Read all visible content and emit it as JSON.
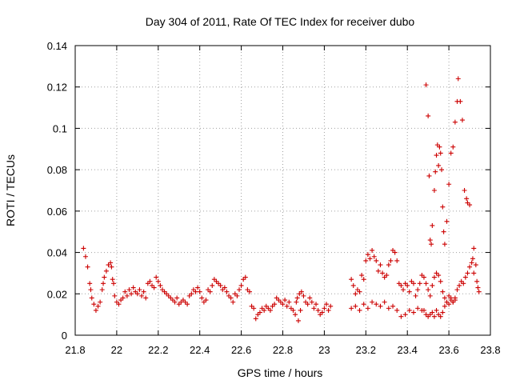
{
  "chart_data": {
    "type": "scatter",
    "title": "Day 304 of 2011, Rate Of TEC Index for receiver dubo",
    "xlabel": "GPS time / hours",
    "ylabel": "ROTI / TECUs",
    "xlim": [
      21.8,
      23.8
    ],
    "ylim": [
      0,
      0.14
    ],
    "x_ticks": [
      "21.8",
      "22",
      "22.2",
      "22.4",
      "22.6",
      "22.8",
      "23",
      "23.2",
      "23.4",
      "23.6",
      "23.8"
    ],
    "y_ticks": [
      "0",
      "0.02",
      "0.04",
      "0.06",
      "0.08",
      "0.1",
      "0.12",
      "0.14"
    ],
    "grid": true,
    "marker": "+",
    "color": "#cc0000",
    "series": [
      {
        "points": [
          [
            21.84,
            0.042
          ],
          [
            21.85,
            0.038
          ],
          [
            21.86,
            0.033
          ],
          [
            21.87,
            0.025
          ],
          [
            21.875,
            0.022
          ],
          [
            21.88,
            0.018
          ],
          [
            21.89,
            0.015
          ],
          [
            21.9,
            0.012
          ],
          [
            21.91,
            0.014
          ],
          [
            21.92,
            0.016
          ],
          [
            21.93,
            0.022
          ],
          [
            21.935,
            0.025
          ],
          [
            21.94,
            0.028
          ],
          [
            21.95,
            0.031
          ],
          [
            21.96,
            0.034
          ],
          [
            21.97,
            0.035
          ],
          [
            21.975,
            0.033
          ],
          [
            21.98,
            0.027
          ],
          [
            21.985,
            0.025
          ],
          [
            21.99,
            0.019
          ],
          [
            22.0,
            0.016
          ],
          [
            22.01,
            0.015
          ],
          [
            22.02,
            0.017
          ],
          [
            22.03,
            0.018
          ],
          [
            22.04,
            0.021
          ],
          [
            22.05,
            0.019
          ],
          [
            22.06,
            0.022
          ],
          [
            22.07,
            0.02
          ],
          [
            22.08,
            0.023
          ],
          [
            22.09,
            0.021
          ],
          [
            22.1,
            0.02
          ],
          [
            22.11,
            0.022
          ],
          [
            22.12,
            0.019
          ],
          [
            22.13,
            0.021
          ],
          [
            22.14,
            0.018
          ],
          [
            22.15,
            0.025
          ],
          [
            22.16,
            0.026
          ],
          [
            22.17,
            0.024
          ],
          [
            22.18,
            0.023
          ],
          [
            22.19,
            0.028
          ],
          [
            22.2,
            0.026
          ],
          [
            22.21,
            0.024
          ],
          [
            22.22,
            0.022
          ],
          [
            22.23,
            0.021
          ],
          [
            22.24,
            0.02
          ],
          [
            22.25,
            0.019
          ],
          [
            22.26,
            0.018
          ],
          [
            22.27,
            0.017
          ],
          [
            22.28,
            0.016
          ],
          [
            22.29,
            0.018
          ],
          [
            22.3,
            0.015
          ],
          [
            22.31,
            0.016
          ],
          [
            22.32,
            0.017
          ],
          [
            22.33,
            0.016
          ],
          [
            22.34,
            0.015
          ],
          [
            22.35,
            0.019
          ],
          [
            22.36,
            0.02
          ],
          [
            22.37,
            0.022
          ],
          [
            22.38,
            0.021
          ],
          [
            22.39,
            0.023
          ],
          [
            22.4,
            0.021
          ],
          [
            22.41,
            0.018
          ],
          [
            22.42,
            0.016
          ],
          [
            22.43,
            0.017
          ],
          [
            22.44,
            0.022
          ],
          [
            22.45,
            0.021
          ],
          [
            22.46,
            0.024
          ],
          [
            22.47,
            0.027
          ],
          [
            22.48,
            0.026
          ],
          [
            22.49,
            0.025
          ],
          [
            22.5,
            0.024
          ],
          [
            22.51,
            0.022
          ],
          [
            22.52,
            0.023
          ],
          [
            22.53,
            0.021
          ],
          [
            22.54,
            0.019
          ],
          [
            22.55,
            0.018
          ],
          [
            22.56,
            0.016
          ],
          [
            22.57,
            0.02
          ],
          [
            22.58,
            0.019
          ],
          [
            22.59,
            0.022
          ],
          [
            22.6,
            0.024
          ],
          [
            22.61,
            0.027
          ],
          [
            22.62,
            0.028
          ],
          [
            22.63,
            0.022
          ],
          [
            22.64,
            0.021
          ],
          [
            22.65,
            0.014
          ],
          [
            22.66,
            0.013
          ],
          [
            22.67,
            0.008
          ],
          [
            22.68,
            0.01
          ],
          [
            22.69,
            0.011
          ],
          [
            22.7,
            0.013
          ],
          [
            22.71,
            0.012
          ],
          [
            22.72,
            0.014
          ],
          [
            22.73,
            0.013
          ],
          [
            22.74,
            0.012
          ],
          [
            22.75,
            0.014
          ],
          [
            22.76,
            0.015
          ],
          [
            22.77,
            0.018
          ],
          [
            22.78,
            0.017
          ],
          [
            22.79,
            0.016
          ],
          [
            22.8,
            0.015
          ],
          [
            22.81,
            0.017
          ],
          [
            22.82,
            0.014
          ],
          [
            22.83,
            0.016
          ],
          [
            22.84,
            0.013
          ],
          [
            22.85,
            0.012
          ],
          [
            22.86,
            0.01
          ],
          [
            22.865,
            0.016
          ],
          [
            22.87,
            0.018
          ],
          [
            22.875,
            0.007
          ],
          [
            22.88,
            0.02
          ],
          [
            22.885,
            0.012
          ],
          [
            22.89,
            0.021
          ],
          [
            22.9,
            0.019
          ],
          [
            22.91,
            0.016
          ],
          [
            22.92,
            0.015
          ],
          [
            22.93,
            0.018
          ],
          [
            22.94,
            0.016
          ],
          [
            22.95,
            0.013
          ],
          [
            22.96,
            0.015
          ],
          [
            22.97,
            0.012
          ],
          [
            22.98,
            0.01
          ],
          [
            22.99,
            0.011
          ],
          [
            23.0,
            0.013
          ],
          [
            23.01,
            0.015
          ],
          [
            23.02,
            0.012
          ],
          [
            23.03,
            0.014
          ],
          [
            23.13,
            0.027
          ],
          [
            23.14,
            0.024
          ],
          [
            23.15,
            0.02
          ],
          [
            23.16,
            0.022
          ],
          [
            23.17,
            0.021
          ],
          [
            23.18,
            0.029
          ],
          [
            23.19,
            0.027
          ],
          [
            23.2,
            0.036
          ],
          [
            23.21,
            0.039
          ],
          [
            23.22,
            0.037
          ],
          [
            23.23,
            0.041
          ],
          [
            23.24,
            0.038
          ],
          [
            23.25,
            0.036
          ],
          [
            23.26,
            0.031
          ],
          [
            23.27,
            0.034
          ],
          [
            23.28,
            0.03
          ],
          [
            23.29,
            0.028
          ],
          [
            23.3,
            0.029
          ],
          [
            23.31,
            0.034
          ],
          [
            23.32,
            0.036
          ],
          [
            23.33,
            0.041
          ],
          [
            23.34,
            0.04
          ],
          [
            23.35,
            0.036
          ],
          [
            23.36,
            0.025
          ],
          [
            23.37,
            0.024
          ],
          [
            23.38,
            0.022
          ],
          [
            23.39,
            0.025
          ],
          [
            23.4,
            0.024
          ],
          [
            23.41,
            0.021
          ],
          [
            23.42,
            0.026
          ],
          [
            23.43,
            0.025
          ],
          [
            23.44,
            0.019
          ],
          [
            23.45,
            0.022
          ],
          [
            23.46,
            0.025
          ],
          [
            23.13,
            0.013
          ],
          [
            23.15,
            0.014
          ],
          [
            23.17,
            0.012
          ],
          [
            23.19,
            0.015
          ],
          [
            23.21,
            0.013
          ],
          [
            23.23,
            0.016
          ],
          [
            23.25,
            0.015
          ],
          [
            23.27,
            0.014
          ],
          [
            23.29,
            0.016
          ],
          [
            23.31,
            0.013
          ],
          [
            23.33,
            0.014
          ],
          [
            23.35,
            0.012
          ],
          [
            23.37,
            0.009
          ],
          [
            23.39,
            0.01
          ],
          [
            23.41,
            0.012
          ],
          [
            23.43,
            0.011
          ],
          [
            23.45,
            0.013
          ],
          [
            23.47,
            0.012
          ],
          [
            23.47,
            0.029
          ],
          [
            23.48,
            0.028
          ],
          [
            23.49,
            0.025
          ],
          [
            23.5,
            0.022
          ],
          [
            23.51,
            0.019
          ],
          [
            23.52,
            0.024
          ],
          [
            23.53,
            0.028
          ],
          [
            23.54,
            0.03
          ],
          [
            23.55,
            0.029
          ],
          [
            23.56,
            0.026
          ],
          [
            23.57,
            0.021
          ],
          [
            23.58,
            0.018
          ],
          [
            23.59,
            0.016
          ],
          [
            23.6,
            0.019
          ],
          [
            23.61,
            0.017
          ],
          [
            23.62,
            0.016
          ],
          [
            23.63,
            0.018
          ],
          [
            23.64,
            0.022
          ],
          [
            23.65,
            0.024
          ],
          [
            23.66,
            0.026
          ],
          [
            23.67,
            0.025
          ],
          [
            23.68,
            0.028
          ],
          [
            23.69,
            0.03
          ],
          [
            23.7,
            0.033
          ],
          [
            23.71,
            0.035
          ],
          [
            23.72,
            0.042
          ],
          [
            23.73,
            0.034
          ],
          [
            23.735,
            0.026
          ],
          [
            23.74,
            0.023
          ],
          [
            23.745,
            0.021
          ],
          [
            23.48,
            0.012
          ],
          [
            23.49,
            0.01
          ],
          [
            23.5,
            0.009
          ],
          [
            23.51,
            0.01
          ],
          [
            23.52,
            0.011
          ],
          [
            23.53,
            0.009
          ],
          [
            23.54,
            0.012
          ],
          [
            23.55,
            0.01
          ],
          [
            23.56,
            0.009
          ],
          [
            23.57,
            0.011
          ],
          [
            23.58,
            0.014
          ],
          [
            23.59,
            0.016
          ],
          [
            23.6,
            0.015
          ],
          [
            23.61,
            0.018
          ],
          [
            23.62,
            0.016
          ],
          [
            23.63,
            0.017
          ],
          [
            23.49,
            0.121
          ],
          [
            23.5,
            0.106
          ],
          [
            23.505,
            0.077
          ],
          [
            23.51,
            0.046
          ],
          [
            23.515,
            0.044
          ],
          [
            23.52,
            0.053
          ],
          [
            23.53,
            0.07
          ],
          [
            23.535,
            0.079
          ],
          [
            23.54,
            0.087
          ],
          [
            23.545,
            0.092
          ],
          [
            23.55,
            0.082
          ],
          [
            23.555,
            0.091
          ],
          [
            23.56,
            0.088
          ],
          [
            23.565,
            0.08
          ],
          [
            23.57,
            0.062
          ],
          [
            23.575,
            0.05
          ],
          [
            23.58,
            0.044
          ],
          [
            23.59,
            0.055
          ],
          [
            23.6,
            0.073
          ],
          [
            23.61,
            0.088
          ],
          [
            23.62,
            0.091
          ],
          [
            23.63,
            0.103
          ],
          [
            23.64,
            0.113
          ],
          [
            23.645,
            0.124
          ],
          [
            23.655,
            0.113
          ],
          [
            23.665,
            0.104
          ],
          [
            23.675,
            0.07
          ],
          [
            23.685,
            0.066
          ],
          [
            23.69,
            0.064
          ],
          [
            23.7,
            0.063
          ],
          [
            23.715,
            0.037
          ],
          [
            23.72,
            0.03
          ]
        ]
      }
    ]
  }
}
